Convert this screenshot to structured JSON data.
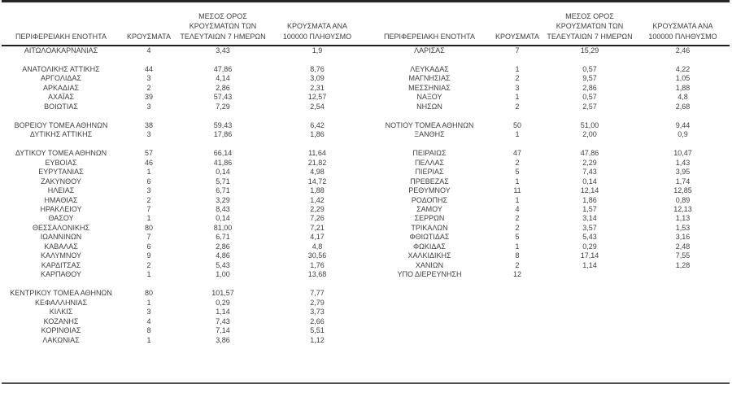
{
  "page": {
    "background_color": "#ffffff",
    "text_color": "#3f3f3f",
    "rule_color": "#262626"
  },
  "columns": {
    "region": "ΠΕΡΙΦΕΡΕΙΑΚΗ ΕΝΟΤΗΤΑ",
    "cases": "ΚΡΟΥΣΜΑΤΑ",
    "avg7": "ΜΕΣΟΣ ΟΡΟΣ\nΚΡΟΥΣΜΑΤΩΝ ΤΩΝ\nΤΕΛΕΥΤΑΙΩΝ 7 ΗΜΕΡΩΝ",
    "per100k": "ΚΡΟΥΣΜΑΤΑ ΑΝΑ\n100000 ΠΛΗΘΥΣΜΟ"
  },
  "left_table": {
    "rows": [
      {
        "region": "ΑΙΤΩΛΟΑΚΑΡΝΑΝΙΑΣ",
        "cases": "4",
        "avg7": "3,43",
        "per100k": "1,9"
      },
      {
        "spacer": true
      },
      {
        "region": "ΑΝΑΤΟΛΙΚΗΣ ΑΤΤΙΚΗΣ",
        "cases": "44",
        "avg7": "47,86",
        "per100k": "8,76"
      },
      {
        "region": "ΑΡΓΟΛΙΔΑΣ",
        "cases": "3",
        "avg7": "4,14",
        "per100k": "3,09"
      },
      {
        "region": "ΑΡΚΑΔΙΑΣ",
        "cases": "2",
        "avg7": "2,86",
        "per100k": "2,31"
      },
      {
        "region": "ΑΧΑΪΑΣ",
        "cases": "39",
        "avg7": "57,43",
        "per100k": "12,57"
      },
      {
        "region": "ΒΟΙΩΤΙΑΣ",
        "cases": "3",
        "avg7": "7,29",
        "per100k": "2,54"
      },
      {
        "spacer": true
      },
      {
        "region": "ΒΟΡΕΙΟΥ ΤΟΜΕΑ ΑΘΗΝΩΝ",
        "cases": "38",
        "avg7": "59,43",
        "per100k": "6,42"
      },
      {
        "region": "ΔΥΤΙΚΗΣ ΑΤΤΙΚΗΣ",
        "cases": "3",
        "avg7": "17,86",
        "per100k": "1,86"
      },
      {
        "spacer": true
      },
      {
        "region": "ΔΥΤΙΚΟΥ ΤΟΜΕΑ ΑΘΗΝΩΝ",
        "cases": "57",
        "avg7": "66,14",
        "per100k": "11,64"
      },
      {
        "region": "ΕΥΒΟΙΑΣ",
        "cases": "46",
        "avg7": "41,86",
        "per100k": "21,82"
      },
      {
        "region": "ΕΥΡΥΤΑΝΙΑΣ",
        "cases": "1",
        "avg7": "0,14",
        "per100k": "4,98"
      },
      {
        "region": "ΖΑΚΥΝΘΟΥ",
        "cases": "6",
        "avg7": "5,71",
        "per100k": "14,72"
      },
      {
        "region": "ΗΛΕΙΑΣ",
        "cases": "3",
        "avg7": "6,71",
        "per100k": "1,88"
      },
      {
        "region": "ΗΜΑΘΙΑΣ",
        "cases": "2",
        "avg7": "3,29",
        "per100k": "1,42"
      },
      {
        "region": "ΗΡΑΚΛΕΙΟΥ",
        "cases": "7",
        "avg7": "8,43",
        "per100k": "2,29"
      },
      {
        "region": "ΘΑΣΟΥ",
        "cases": "1",
        "avg7": "0,14",
        "per100k": "7,26"
      },
      {
        "region": "ΘΕΣΣΑΛΟΝΙΚΗΣ",
        "cases": "80",
        "avg7": "81,00",
        "per100k": "7,21"
      },
      {
        "region": "ΙΩΑΝΝΙΝΩΝ",
        "cases": "7",
        "avg7": "6,71",
        "per100k": "4,17"
      },
      {
        "region": "ΚΑΒΑΛΑΣ",
        "cases": "6",
        "avg7": "2,86",
        "per100k": "4,8"
      },
      {
        "region": "ΚΑΛΥΜΝΟΥ",
        "cases": "9",
        "avg7": "4,86",
        "per100k": "30,56"
      },
      {
        "region": "ΚΑΡΔΙΤΣΑΣ",
        "cases": "2",
        "avg7": "5,43",
        "per100k": "1,76"
      },
      {
        "region": "ΚΑΡΠΑΘΟΥ",
        "cases": "1",
        "avg7": "1,00",
        "per100k": "13,68"
      },
      {
        "spacer": true
      },
      {
        "region": "ΚΕΝΤΡΙΚΟΥ ΤΟΜΕΑ ΑΘΗΝΩΝ",
        "cases": "80",
        "avg7": "101,57",
        "per100k": "7,77"
      },
      {
        "region": "ΚΕΦΑΛΛΗΝΙΑΣ",
        "cases": "1",
        "avg7": "0,29",
        "per100k": "2,79"
      },
      {
        "region": "ΚΙΛΚΙΣ",
        "cases": "3",
        "avg7": "1,14",
        "per100k": "3,73"
      },
      {
        "region": "ΚΟΖΑΝΗΣ",
        "cases": "4",
        "avg7": "7,43",
        "per100k": "2,66"
      },
      {
        "region": "ΚΟΡΙΝΘΙΑΣ",
        "cases": "8",
        "avg7": "7,14",
        "per100k": "5,51"
      },
      {
        "region": "ΛΑΚΩΝΙΑΣ",
        "cases": "1",
        "avg7": "3,86",
        "per100k": "1,12"
      }
    ]
  },
  "right_table": {
    "rows": [
      {
        "region": "ΛΑΡΙΣΑΣ",
        "cases": "7",
        "avg7": "15,29",
        "per100k": "2,46"
      },
      {
        "spacer": true
      },
      {
        "region": "ΛΕΥΚΑΔΑΣ",
        "cases": "1",
        "avg7": "0,57",
        "per100k": "4,22"
      },
      {
        "region": "ΜΑΓΝΗΣΙΑΣ",
        "cases": "2",
        "avg7": "9,57",
        "per100k": "1,05"
      },
      {
        "region": "ΜΕΣΣΗΝΙΑΣ",
        "cases": "3",
        "avg7": "2,86",
        "per100k": "1,88"
      },
      {
        "region": "ΝΑΞΟΥ",
        "cases": "1",
        "avg7": "0,57",
        "per100k": "4,8"
      },
      {
        "region": "ΝΗΣΩΝ",
        "cases": "2",
        "avg7": "2,57",
        "per100k": "2,68"
      },
      {
        "spacer": true
      },
      {
        "region": "ΝΟΤΙΟΥ ΤΟΜΕΑ ΑΘΗΝΩΝ",
        "cases": "50",
        "avg7": "51,00",
        "per100k": "9,44"
      },
      {
        "region": "ΞΑΝΘΗΣ",
        "cases": "1",
        "avg7": "2,00",
        "per100k": "0,9"
      },
      {
        "spacer": true
      },
      {
        "region": "ΠΕΙΡΑΙΩΣ",
        "cases": "47",
        "avg7": "47,86",
        "per100k": "10,47"
      },
      {
        "region": "ΠΕΛΛΑΣ",
        "cases": "2",
        "avg7": "2,29",
        "per100k": "1,43"
      },
      {
        "region": "ΠΙΕΡΙΑΣ",
        "cases": "5",
        "avg7": "7,43",
        "per100k": "3,95"
      },
      {
        "region": "ΠΡΕΒΕΖΑΣ",
        "cases": "1",
        "avg7": "0,14",
        "per100k": "1,74"
      },
      {
        "region": "ΡΕΘΥΜΝΟΥ",
        "cases": "11",
        "avg7": "12,14",
        "per100k": "12,85"
      },
      {
        "region": "ΡΟΔΟΠΗΣ",
        "cases": "1",
        "avg7": "1,86",
        "per100k": "0,89"
      },
      {
        "region": "ΣΑΜΟΥ",
        "cases": "4",
        "avg7": "1,57",
        "per100k": "12,13"
      },
      {
        "region": "ΣΕΡΡΩΝ",
        "cases": "2",
        "avg7": "3,14",
        "per100k": "1,13"
      },
      {
        "region": "ΤΡΙΚΑΛΩΝ",
        "cases": "2",
        "avg7": "3,57",
        "per100k": "1,53"
      },
      {
        "region": "ΦΘΙΩΤΙΔΑΣ",
        "cases": "5",
        "avg7": "5,43",
        "per100k": "3,16"
      },
      {
        "region": "ΦΩΚΙΔΑΣ",
        "cases": "1",
        "avg7": "0,29",
        "per100k": "2,48"
      },
      {
        "region": "ΧΑΛΚΙΔΙΚΗΣ",
        "cases": "8",
        "avg7": "17,14",
        "per100k": "7,55"
      },
      {
        "region": "ΧΑΝΙΩΝ",
        "cases": "2",
        "avg7": "1,14",
        "per100k": "1,28"
      },
      {
        "region": "ΥΠΟ ΔΙΕΡΕΥΝΗΣΗ",
        "cases": "12",
        "avg7": "",
        "per100k": ""
      }
    ]
  }
}
